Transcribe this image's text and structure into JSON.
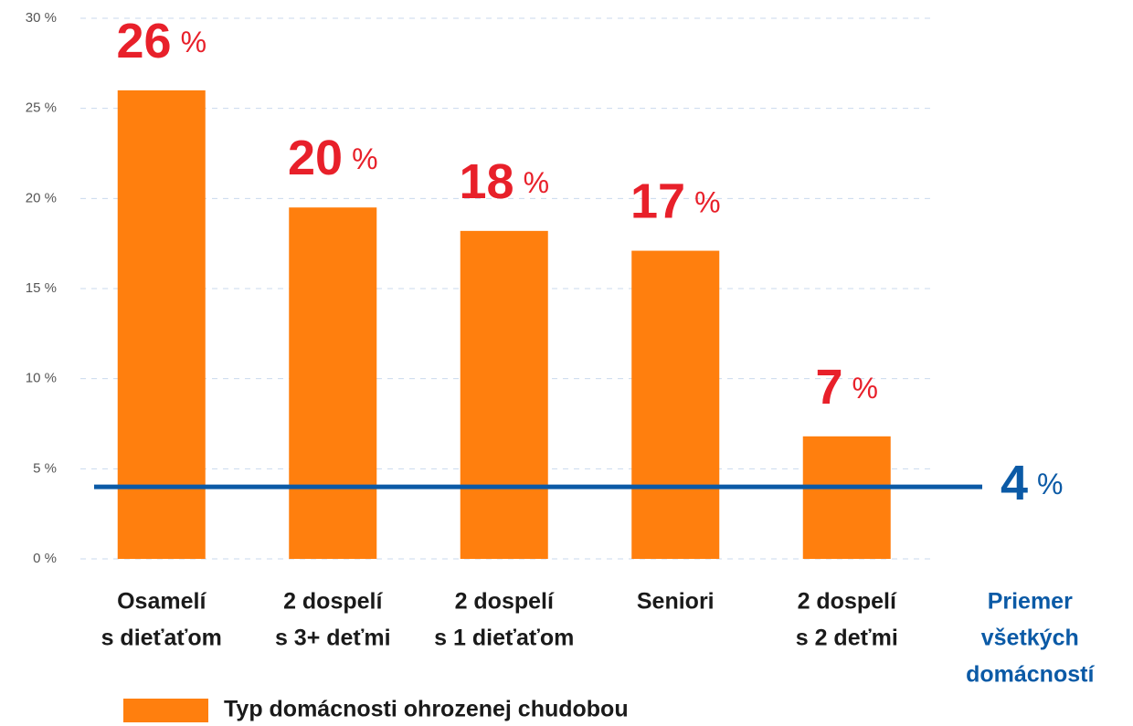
{
  "chart_data": {
    "type": "bar",
    "categories": [
      [
        "Osamelí",
        "s dieťaťom"
      ],
      [
        "2 dospelí",
        "s 3+ deťmi"
      ],
      [
        "2 dospelí",
        "s 1 dieťaťom"
      ],
      [
        "Seniori"
      ],
      [
        "2 dospelí",
        "s 2 deťmi"
      ]
    ],
    "series": [
      {
        "name": "Typ domácnosti ohrozenej chudobou",
        "color": "#ff7f0e",
        "values": [
          26,
          19.5,
          18.2,
          17.1,
          6.8
        ],
        "value_labels": [
          "26",
          "20",
          "18",
          "17",
          "7"
        ]
      }
    ],
    "value_unit": "%",
    "average": {
      "name": [
        "Priemer",
        "všetkých",
        "domácností"
      ],
      "value": 4,
      "value_label": "4",
      "color": "#0b5aa6"
    },
    "ylim": [
      0,
      30
    ],
    "yticks": [
      {
        "value": 0,
        "label": "0 %"
      },
      {
        "value": 5,
        "label": "5 %"
      },
      {
        "value": 10,
        "label": "10 %"
      },
      {
        "value": 15,
        "label": "15 %"
      },
      {
        "value": 20,
        "label": "20 %"
      },
      {
        "value": 25,
        "label": "25 %"
      },
      {
        "value": 30,
        "label": "30 %"
      }
    ],
    "grid": true,
    "legend": "bottom"
  }
}
